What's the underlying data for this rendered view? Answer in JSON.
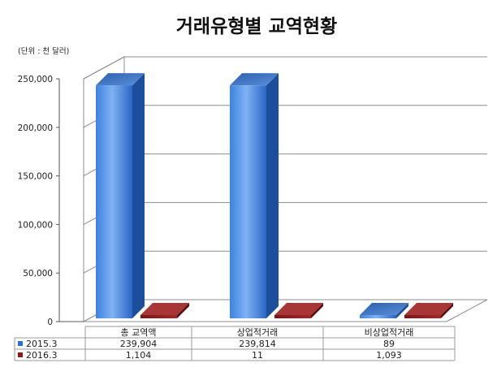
{
  "chart_data": {
    "type": "bar",
    "title": "거래유형별 교역현황",
    "unit_label": "(단위 : 천 달러)",
    "categories": [
      "총 교역액",
      "상업적거래",
      "비상업적거래"
    ],
    "series": [
      {
        "name": "2015.3",
        "values": [
          239904,
          239814,
          89
        ],
        "value_labels": [
          "239,904",
          "239,814",
          "89"
        ],
        "color": "#2f6fd0"
      },
      {
        "name": "2016.3",
        "values": [
          1104,
          11,
          1093
        ],
        "value_labels": [
          "1,104",
          "11",
          "1,093"
        ],
        "color": "#8b1a1a"
      }
    ],
    "ylim": [
      0,
      250000
    ],
    "yticks": [
      0,
      50000,
      100000,
      150000,
      200000,
      250000
    ],
    "ytick_labels": [
      "0",
      "50,000",
      "100,000",
      "150,000",
      "200,000",
      "250,000"
    ],
    "xlabel": "",
    "ylabel": "",
    "grid": true,
    "legend": "data-table",
    "style": "3d-column"
  }
}
